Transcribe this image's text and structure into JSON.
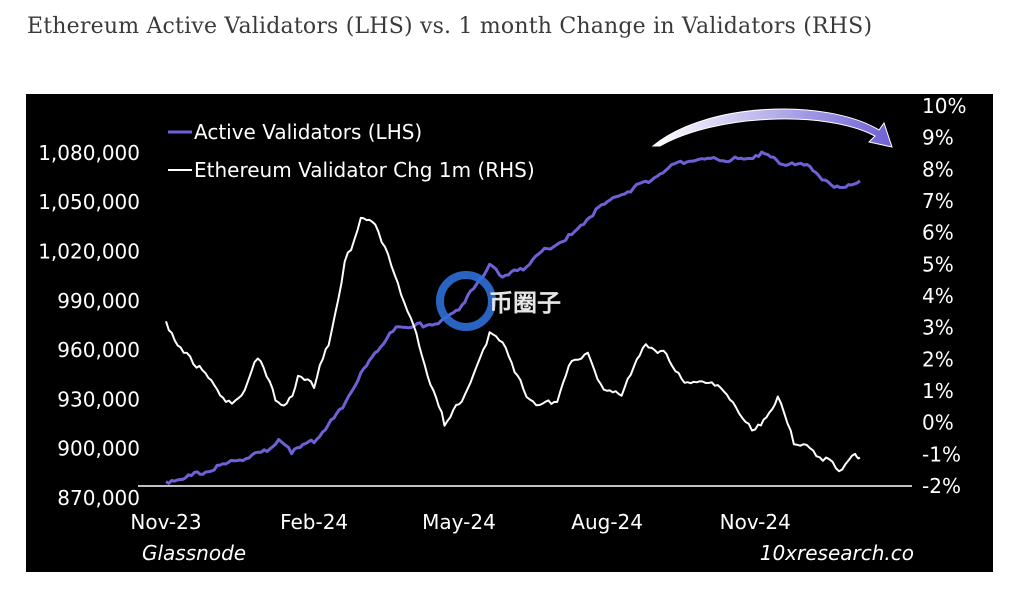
{
  "title": "Ethereum Active Validators (LHS) vs. 1 month Change in Validators (RHS)",
  "source_left": "Glassnode",
  "source_right": "10xresearch.co",
  "watermark": "币圈子",
  "colors": {
    "background": "#000000",
    "active_validators": "#6e60d6",
    "change": "#ffffff",
    "axis": "#ffffff"
  },
  "chart_data": {
    "type": "line",
    "title": "Ethereum Active Validators (LHS) vs. 1 month Change in Validators (RHS)",
    "legend_placement": "top-left",
    "grid": false,
    "x_axis": {
      "ticks": [
        "Nov-23",
        "Feb-24",
        "May-24",
        "Aug-24",
        "Nov-24"
      ],
      "range": [
        "2023-11-01",
        "2025-01-15"
      ]
    },
    "y_left": {
      "ticks": [
        "870,000",
        "900,000",
        "930,000",
        "960,000",
        "990,000",
        "1,020,000",
        "1,050,000",
        "1,080,000"
      ],
      "range": [
        870000,
        1100000
      ]
    },
    "y_right": {
      "ticks": [
        "-2%",
        "-1%",
        "0%",
        "1%",
        "2%",
        "3%",
        "4%",
        "5%",
        "6%",
        "7%",
        "8%",
        "9%",
        "10%"
      ],
      "range": [
        -2,
        10
      ]
    },
    "annotation": "arrow-over-peak",
    "series": [
      {
        "name": "Active Validators (LHS)",
        "axis": "left",
        "points": [
          [
            "2023-11-01",
            880000
          ],
          [
            "2023-11-15",
            883000
          ],
          [
            "2023-12-01",
            888000
          ],
          [
            "2023-12-15",
            893000
          ],
          [
            "2024-01-01",
            898000
          ],
          [
            "2024-01-10",
            905000
          ],
          [
            "2024-01-18",
            898000
          ],
          [
            "2024-02-01",
            905000
          ],
          [
            "2024-02-15",
            920000
          ],
          [
            "2024-03-01",
            945000
          ],
          [
            "2024-03-15",
            965000
          ],
          [
            "2024-03-25",
            975000
          ],
          [
            "2024-04-05",
            975000
          ],
          [
            "2024-04-20",
            977000
          ],
          [
            "2024-05-01",
            985000
          ],
          [
            "2024-05-10",
            998000
          ],
          [
            "2024-05-20",
            1012000
          ],
          [
            "2024-05-28",
            1004000
          ],
          [
            "2024-06-10",
            1010000
          ],
          [
            "2024-06-25",
            1022000
          ],
          [
            "2024-07-10",
            1030000
          ],
          [
            "2024-07-25",
            1045000
          ],
          [
            "2024-08-10",
            1055000
          ],
          [
            "2024-08-25",
            1062000
          ],
          [
            "2024-09-10",
            1072000
          ],
          [
            "2024-09-25",
            1076000
          ],
          [
            "2024-10-10",
            1076000
          ],
          [
            "2024-10-25",
            1076000
          ],
          [
            "2024-11-05",
            1080000
          ],
          [
            "2024-11-20",
            1073000
          ],
          [
            "2024-12-05",
            1072000
          ],
          [
            "2024-12-20",
            1058000
          ],
          [
            "2025-01-05",
            1063000
          ]
        ]
      },
      {
        "name": "Ethereum Validator Chg 1m (RHS)",
        "axis": "right",
        "points": [
          [
            "2023-11-01",
            3.2
          ],
          [
            "2023-11-10",
            2.3
          ],
          [
            "2023-11-20",
            1.8
          ],
          [
            "2023-12-01",
            1.2
          ],
          [
            "2023-12-10",
            0.6
          ],
          [
            "2023-12-20",
            1.0
          ],
          [
            "2023-12-28",
            2.1
          ],
          [
            "2024-01-08",
            0.8
          ],
          [
            "2024-01-15",
            0.5
          ],
          [
            "2024-01-22",
            1.4
          ],
          [
            "2024-02-01",
            1.2
          ],
          [
            "2024-02-10",
            2.5
          ],
          [
            "2024-02-20",
            5.0
          ],
          [
            "2024-03-01",
            6.4
          ],
          [
            "2024-03-10",
            6.3
          ],
          [
            "2024-03-20",
            5.0
          ],
          [
            "2024-04-01",
            3.3
          ],
          [
            "2024-04-15",
            1.0
          ],
          [
            "2024-04-22",
            0.0
          ],
          [
            "2024-05-01",
            0.6
          ],
          [
            "2024-05-10",
            1.5
          ],
          [
            "2024-05-20",
            2.8
          ],
          [
            "2024-05-30",
            2.4
          ],
          [
            "2024-06-10",
            1.0
          ],
          [
            "2024-06-20",
            0.5
          ],
          [
            "2024-07-01",
            0.7
          ],
          [
            "2024-07-10",
            2.0
          ],
          [
            "2024-07-20",
            2.2
          ],
          [
            "2024-07-30",
            1.0
          ],
          [
            "2024-08-10",
            0.9
          ],
          [
            "2024-08-25",
            2.5
          ],
          [
            "2024-09-05",
            2.2
          ],
          [
            "2024-09-20",
            1.2
          ],
          [
            "2024-10-05",
            1.3
          ],
          [
            "2024-10-20",
            0.5
          ],
          [
            "2024-11-01",
            -0.3
          ],
          [
            "2024-11-15",
            0.8
          ],
          [
            "2024-11-25",
            -0.6
          ],
          [
            "2024-12-05",
            -0.8
          ],
          [
            "2024-12-15",
            -1.2
          ],
          [
            "2024-12-25",
            -1.5
          ],
          [
            "2025-01-02",
            -0.9
          ],
          [
            "2025-01-05",
            -1.1
          ]
        ]
      }
    ]
  }
}
